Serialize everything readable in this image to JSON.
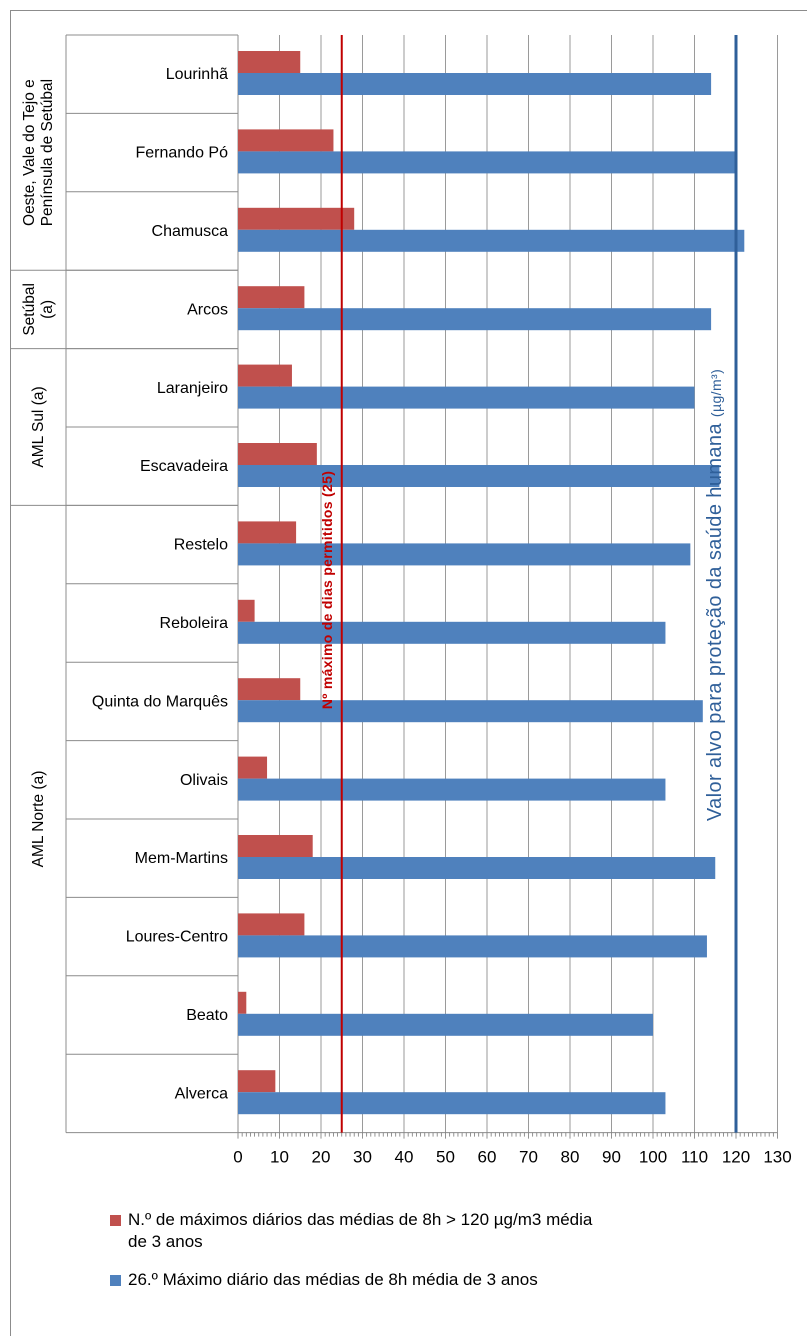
{
  "chart_data": {
    "type": "bar",
    "orientation": "horizontal",
    "categories": [
      "Lourinhã",
      "Fernando Pó",
      "Chamusca",
      "Arcos",
      "Laranjeiro",
      "Escavadeira",
      "Restelo",
      "Reboleira",
      "Quinta do Marquês",
      "Olivais",
      "Mem-Martins",
      "Loures-Centro",
      "Beato",
      "Alverca"
    ],
    "groups": [
      {
        "label_lines": [
          "Oeste, Vale do Tejo e",
          "Península de Setúbal"
        ],
        "count": 3
      },
      {
        "label_lines": [
          "Setúbal",
          "(a)"
        ],
        "count": 1
      },
      {
        "label_lines": [
          "AML Sul (a)"
        ],
        "count": 2
      },
      {
        "label_lines": [
          "AML Norte (a)"
        ],
        "count": 8
      }
    ],
    "series": [
      {
        "name": "N.º de máximos diários das médias de 8h  > 120 µg/m3 média de 3 anos",
        "name_lines": [
          "N.º de máximos diários das médias de 8h  > 120 µg/m3 média",
          "de 3 anos"
        ],
        "color": "#c0504d",
        "values": [
          15,
          23,
          28,
          16,
          13,
          19,
          14,
          4,
          15,
          7,
          18,
          16,
          2,
          9
        ]
      },
      {
        "name": "26.º Máximo diário das médias de 8h média de 3 anos",
        "name_lines": [
          "26.º Máximo diário das médias de 8h média de 3 anos"
        ],
        "color": "#4f81bd",
        "values": [
          114,
          120,
          122,
          114,
          110,
          116,
          109,
          103,
          112,
          103,
          115,
          113,
          100,
          103
        ]
      }
    ],
    "xlim": [
      0,
      130
    ],
    "xticks": [
      "0",
      "10",
      "20",
      "30",
      "40",
      "50",
      "60",
      "70",
      "80",
      "90",
      "100",
      "110",
      "120",
      "130"
    ],
    "grid": "vertical",
    "legend_position": "bottom",
    "reference_lines": [
      {
        "value": 25,
        "color": "#c00000",
        "label": "Nº máximo de dias permitidos (25)"
      },
      {
        "value": 120,
        "color": "#2f5f99",
        "label": "Valor alvo para proteção da saúde humana",
        "unit": "(µg/m³)"
      }
    ]
  }
}
